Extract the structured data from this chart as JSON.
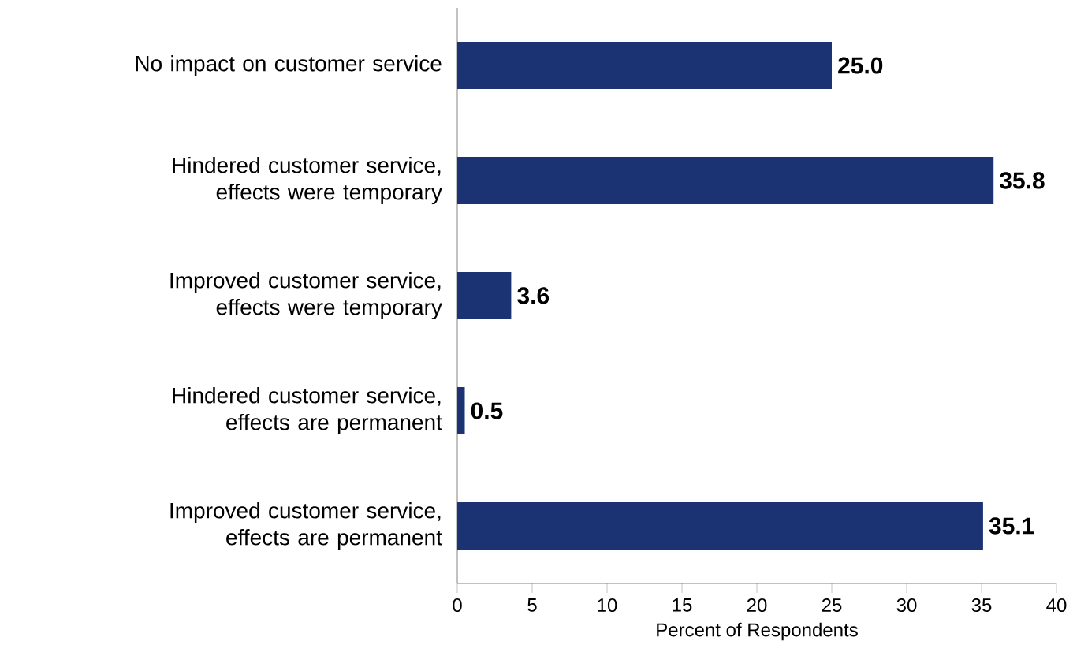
{
  "chart_data": {
    "type": "bar",
    "orientation": "horizontal",
    "xlabel": "Percent of Respondents",
    "categories": [
      "No impact on customer service",
      "Hindered customer service, effects were temporary",
      "Improved customer service, effects were temporary",
      "Hindered customer service, effects are permanent",
      "Improved customer service, effects are permanent"
    ],
    "values": [
      25.0,
      35.8,
      3.6,
      0.5,
      35.1
    ],
    "value_labels": [
      "25.0",
      "35.8",
      "3.6",
      "0.5",
      "35.1"
    ],
    "color": "#1b3372",
    "xlim": [
      0,
      40
    ],
    "xticks": [
      0,
      5,
      10,
      15,
      20,
      25,
      30,
      35,
      40
    ],
    "grid": false
  }
}
